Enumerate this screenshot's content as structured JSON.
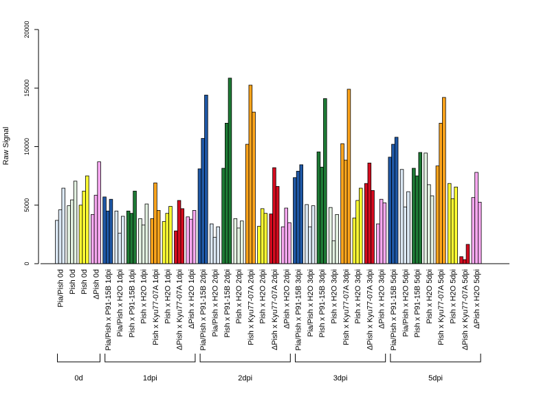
{
  "chart_data": {
    "type": "bar",
    "title": "",
    "xlabel": "",
    "ylabel": "Raw Signal",
    "ylim": [
      0,
      20000
    ],
    "yticks": [
      0,
      5000,
      10000,
      15000,
      20000
    ],
    "grid": false,
    "legend": "none",
    "colors": {
      "Pia/Pish": "#dbe8f4",
      "Pia/Pish x P91-15B": "#1f58a6",
      "Pia/Pish x H2O": "#dbe8f4",
      "Pish x P91-15B": "#1e7a35",
      "Pish x H2O": "#e4f2e2",
      "Pish": "#ffff33",
      "Pish x Kyu77-07A": "#ffa51c",
      "ΔPish": "#f7a8f0",
      "ΔPish x Kyu77-07A": "#d40c1f",
      "ΔPish x H2O": "#f7a8f0"
    },
    "categories": [
      {
        "label": "Pia/Pish 0d",
        "group": "Pia/Pish",
        "values": [
          3700,
          4600,
          6450
        ]
      },
      {
        "label": "Pish 0d",
        "group": "Pish x H2O",
        "values": [
          4950,
          5450,
          7050
        ]
      },
      {
        "label": "Pish 0d",
        "group": "Pish",
        "values": [
          5000,
          6200,
          7500
        ]
      },
      {
        "label": "ΔPish 0d",
        "group": "ΔPish",
        "values": [
          4200,
          5850,
          8700
        ]
      },
      {
        "label": "Pia/Pish x P91-15B 1dpi",
        "group": "Pia/Pish x P91-15B",
        "values": [
          5700,
          4500,
          5500
        ]
      },
      {
        "label": "Pia/Pish x H2O 1dpi",
        "group": "Pia/Pish x H2O",
        "values": [
          4500,
          2600,
          4050
        ]
      },
      {
        "label": "Pish x P91-15B 1dpi",
        "group": "Pish x P91-15B",
        "values": [
          4500,
          4300,
          6200
        ]
      },
      {
        "label": "Pish x H2O 1dpi",
        "group": "Pish x H2O",
        "values": [
          3850,
          3300,
          5100
        ]
      },
      {
        "label": "Pish x Kyu77-07A 1dpi",
        "group": "Pish x Kyu77-07A",
        "values": [
          3850,
          6900,
          4550
        ]
      },
      {
        "label": "Pish x H2O 1dpi",
        "group": "Pish",
        "values": [
          3600,
          4300,
          4900
        ]
      },
      {
        "label": "ΔPish x Kyu77-07A 1dpi",
        "group": "ΔPish x Kyu77-07A",
        "values": [
          2800,
          5400,
          4700
        ]
      },
      {
        "label": "ΔPish x H2O 1dpi",
        "group": "ΔPish x H2O",
        "values": [
          4000,
          3800,
          4550
        ]
      },
      {
        "label": "Pia/Pish x P91-15B 2dpi",
        "group": "Pia/Pish x P91-15B",
        "values": [
          8100,
          10700,
          14400
        ]
      },
      {
        "label": "Pia/Pish x H2O 2dpi",
        "group": "Pia/Pish x H2O",
        "values": [
          3400,
          2250,
          3150
        ]
      },
      {
        "label": "Pish x P91-15B 2dpi",
        "group": "Pish x P91-15B",
        "values": [
          8150,
          12000,
          15850
        ]
      },
      {
        "label": "Pish x H2O 2dpi",
        "group": "Pish x H2O",
        "values": [
          3850,
          3050,
          3650
        ]
      },
      {
        "label": "Pish x Kyu77-07A 2dpi",
        "group": "Pish x Kyu77-07A",
        "values": [
          10200,
          15250,
          12950
        ]
      },
      {
        "label": "Pish x H2O 2dpi",
        "group": "Pish",
        "values": [
          3200,
          4700,
          4300
        ]
      },
      {
        "label": "ΔPish x Kyu77-07A 2dpi",
        "group": "ΔPish x Kyu77-07A",
        "values": [
          4250,
          8200,
          6600
        ]
      },
      {
        "label": "ΔPish x H2O 2dpi",
        "group": "ΔPish x H2O",
        "values": [
          3150,
          4750,
          3500
        ]
      },
      {
        "label": "Pia/Pish x P91-15B 3dpi",
        "group": "Pia/Pish x P91-15B",
        "values": [
          7350,
          7900,
          8450
        ]
      },
      {
        "label": "Pia/Pish x H2O 3dpi",
        "group": "Pia/Pish x H2O",
        "values": [
          5050,
          3150,
          4950
        ]
      },
      {
        "label": "Pish x P91-15B 3dpi",
        "group": "Pish x P91-15B",
        "values": [
          9550,
          8250,
          14100
        ]
      },
      {
        "label": "Pish x H2O 3dpi",
        "group": "Pish x H2O",
        "values": [
          4800,
          1950,
          4200
        ]
      },
      {
        "label": "Pish x Kyu77-07A 3dpi",
        "group": "Pish x Kyu77-07A",
        "values": [
          10250,
          8850,
          14900
        ]
      },
      {
        "label": "Pish x H2O 3dpi",
        "group": "Pish",
        "values": [
          3900,
          5400,
          6450
        ]
      },
      {
        "label": "ΔPish x Kyu77-07A 3dpi",
        "group": "ΔPish x Kyu77-07A",
        "values": [
          6850,
          8600,
          6250
        ]
      },
      {
        "label": "ΔPish x H2O 3dpi",
        "group": "ΔPish x H2O",
        "values": [
          3400,
          5500,
          5200
        ]
      },
      {
        "label": "Pia/Pish x P91-15B 5dpi",
        "group": "Pia/Pish x P91-15B",
        "values": [
          9100,
          10200,
          10800
        ]
      },
      {
        "label": "Pia/Pish x H2O 5dpi",
        "group": "Pia/Pish x H2O",
        "values": [
          8050,
          4850,
          6150
        ]
      },
      {
        "label": "Pish x P91-15B 5dpi",
        "group": "Pish x P91-15B",
        "values": [
          8150,
          7500,
          9500
        ]
      },
      {
        "label": "Pish x H2O 5dpi",
        "group": "Pish x H2O",
        "values": [
          9450,
          6750,
          5800
        ]
      },
      {
        "label": "Pish x Kyu77-07A 5dpi",
        "group": "Pish x Kyu77-07A",
        "values": [
          8350,
          12000,
          14200
        ]
      },
      {
        "label": "Pish x H2O 5dpi",
        "group": "Pish",
        "values": [
          6850,
          5550,
          6550
        ]
      },
      {
        "label": "ΔPish x Kyu77-07A 5dpi",
        "group": "ΔPish x Kyu77-07A",
        "values": [
          600,
          350,
          1650
        ]
      },
      {
        "label": "ΔPish x H2O 5dpi",
        "group": "ΔPish x H2O",
        "values": [
          5650,
          7800,
          5250
        ]
      }
    ],
    "groups": [
      {
        "label": "0d",
        "from": 0,
        "to": 3
      },
      {
        "label": "1dpi",
        "from": 4,
        "to": 11
      },
      {
        "label": "2dpi",
        "from": 12,
        "to": 19
      },
      {
        "label": "3dpi",
        "from": 20,
        "to": 27
      },
      {
        "label": "5dpi",
        "from": 28,
        "to": 35
      }
    ]
  }
}
